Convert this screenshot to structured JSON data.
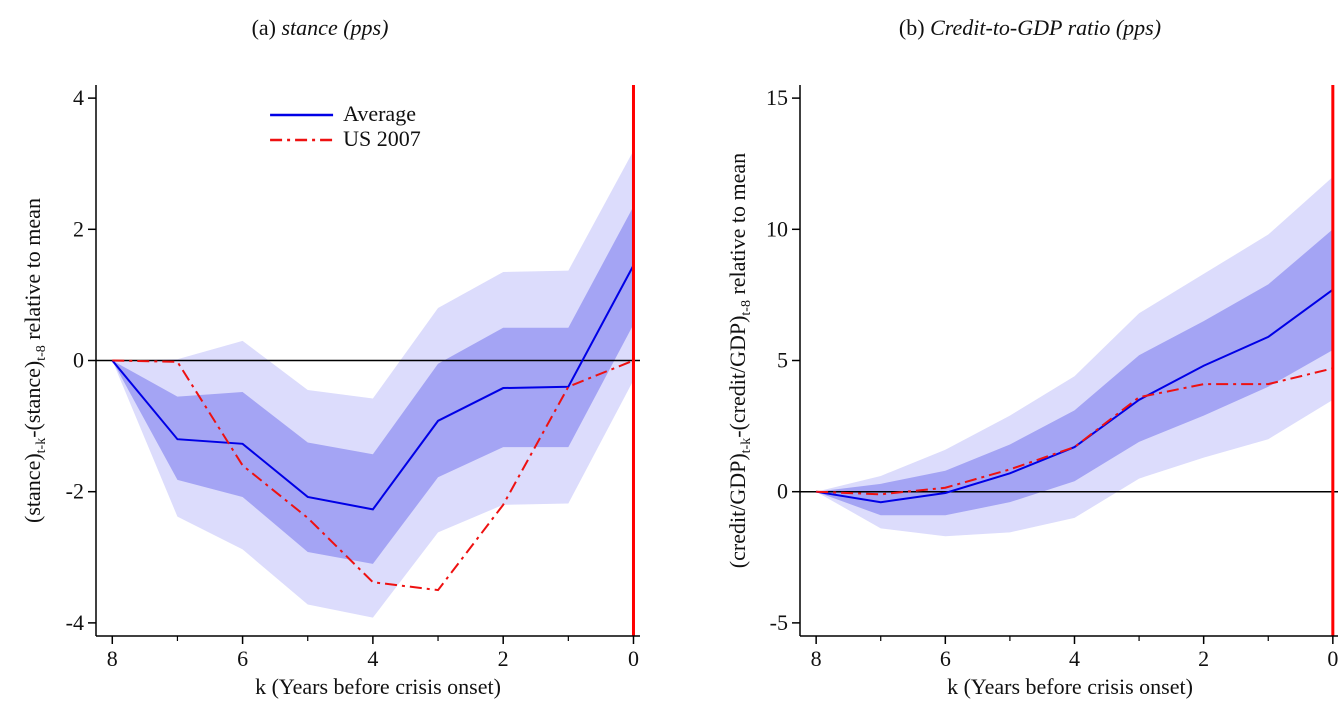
{
  "chart_data": [
    {
      "type": "line",
      "panel": "(a)",
      "title": "stance (pps)",
      "ylabel": [
        "(stance)",
        "t-k",
        "-(stance)",
        "t-8",
        " relative to mean"
      ],
      "xlabel": "k (Years before crisis onset)",
      "x": [
        8,
        7,
        6,
        5,
        4,
        3,
        2,
        1,
        0
      ],
      "xlim": [
        8.25,
        -0.1
      ],
      "xticks": [
        8,
        6,
        4,
        2,
        0
      ],
      "xminor": [
        7,
        5,
        3,
        1
      ],
      "ylim": [
        -4.2,
        4.2
      ],
      "yticks": [
        -4,
        -2,
        0,
        2,
        4
      ],
      "hline": 0,
      "vline": {
        "x": 0,
        "color": "#ff0000"
      },
      "legend": "upper center",
      "bands": [
        {
          "color": "#dcdcfc",
          "upper": [
            0,
            0.02,
            0.3,
            -0.45,
            -0.58,
            0.8,
            1.35,
            1.37,
            3.2
          ],
          "lower": [
            0,
            -2.38,
            -2.88,
            -3.72,
            -3.92,
            -2.62,
            -2.2,
            -2.18,
            -0.3
          ]
        },
        {
          "color": "#a4a4f4",
          "upper": [
            0,
            -0.55,
            -0.48,
            -1.25,
            -1.43,
            -0.05,
            0.5,
            0.5,
            2.35
          ],
          "lower": [
            0,
            -1.82,
            -2.08,
            -2.92,
            -3.1,
            -1.78,
            -1.32,
            -1.32,
            0.55
          ]
        }
      ],
      "series": [
        {
          "name": "Average",
          "color": "#0000e6",
          "dash": "solid",
          "values": [
            0,
            -1.2,
            -1.27,
            -2.08,
            -2.27,
            -0.92,
            -0.42,
            -0.4,
            1.45
          ]
        },
        {
          "name": "US 2007",
          "color": "#ee1111",
          "dash": "dashdot",
          "values": [
            0,
            -0.02,
            -1.6,
            -2.4,
            -3.38,
            -3.5,
            -2.2,
            -0.4,
            0
          ]
        }
      ]
    },
    {
      "type": "line",
      "panel": "(b)",
      "title": "Credit-to-GDP ratio (pps)",
      "ylabel": [
        "(credit/GDP)",
        "t-k",
        "-(credit/GDP)",
        "t-8",
        " relative to mean"
      ],
      "xlabel": "k (Years before crisis onset)",
      "x": [
        8,
        7,
        6,
        5,
        4,
        3,
        2,
        1,
        0
      ],
      "xlim": [
        8.25,
        -0.08
      ],
      "xticks": [
        8,
        6,
        4,
        2,
        0
      ],
      "xminor": [
        7,
        5,
        3,
        1
      ],
      "ylim": [
        -5.5,
        15.5
      ],
      "yticks": [
        -5,
        0,
        5,
        10,
        15
      ],
      "hline": 0,
      "vline": {
        "x": 0,
        "color": "#ff0000"
      },
      "legend": "none",
      "bands": [
        {
          "color": "#dcdcfc",
          "upper": [
            0,
            0.6,
            1.6,
            2.9,
            4.4,
            6.8,
            8.3,
            9.8,
            12.0
          ],
          "lower": [
            0,
            -1.4,
            -1.7,
            -1.55,
            -1.0,
            0.5,
            1.3,
            2.0,
            3.5
          ]
        },
        {
          "color": "#a4a4f4",
          "upper": [
            0,
            0.3,
            0.8,
            1.8,
            3.1,
            5.2,
            6.5,
            7.9,
            10.0
          ],
          "lower": [
            0,
            -0.9,
            -0.9,
            -0.4,
            0.4,
            1.9,
            2.9,
            4.0,
            5.4
          ]
        }
      ],
      "series": [
        {
          "name": "Average",
          "color": "#0000e6",
          "dash": "solid",
          "values": [
            0,
            -0.4,
            -0.05,
            0.7,
            1.7,
            3.5,
            4.8,
            5.9,
            7.7
          ]
        },
        {
          "name": "US 2007",
          "color": "#ee1111",
          "dash": "dashdot",
          "values": [
            0,
            -0.1,
            0.15,
            0.85,
            1.7,
            3.6,
            4.1,
            4.1,
            4.7
          ]
        }
      ]
    }
  ]
}
